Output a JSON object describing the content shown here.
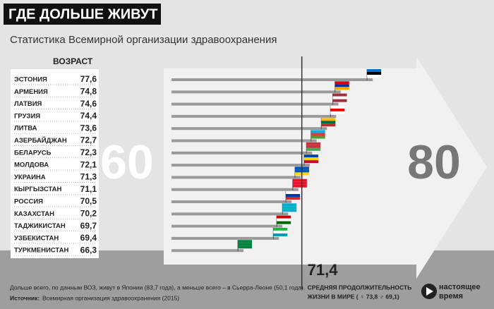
{
  "chart_data": {
    "type": "bar",
    "title": "ГДЕ ДОЛЬШЕ ЖИВУТ",
    "subtitle": "Статистика Всемирной организации здравоохранения",
    "value_header": "ВОЗРАСТ",
    "categories": [
      "ЭСТОНИЯ",
      "АРМЕНИЯ",
      "ЛАТВИЯ",
      "ГРУЗИЯ",
      "ЛИТВА",
      "АЗЕРБАЙДЖАН",
      "БЕЛАРУСЬ",
      "МОЛДОВА",
      "УКРАИНА",
      "КЫРГЫЗСТАН",
      "РОССИЯ",
      "КАЗАХСТАН",
      "ТАДЖИКИСТАН",
      "УЗБЕКИСТАН",
      "ТУРКМЕНИСТАН"
    ],
    "values": [
      77.6,
      74.8,
      74.6,
      74.4,
      73.6,
      72.7,
      72.3,
      72.1,
      71.3,
      71.1,
      70.5,
      70.2,
      69.7,
      69.4,
      66.3
    ],
    "value_labels": [
      "77,6",
      "74,8",
      "74,6",
      "74,4",
      "73,6",
      "72,7",
      "72,3",
      "72,1",
      "71,3",
      "71,1",
      "70,5",
      "70,2",
      "69,7",
      "69,4",
      "66,3"
    ],
    "color": "#9a9a9a",
    "xlim": [
      60,
      80
    ],
    "xticks": [
      60,
      80
    ],
    "average": {
      "value": 71.4,
      "label": "71,4",
      "caption_1": "СРЕДНЯЯ ПРОДОЛЖИТЕЛЬНОСТЬ",
      "caption_2": "ЖИЗНИ В МИРЕ ( ♀ 73,8  ♂ 69,1)"
    },
    "note": "Дольше всего, по данным ВОЗ, живут в Японии (83,7 года), а меньше всего – в Сьерра-Леоне (50,1 года).",
    "source_label": "Источник:",
    "source_text": "Всемирная организация здравоохранения (2015)",
    "logo_1": "настоящее",
    "logo_2": "время"
  }
}
